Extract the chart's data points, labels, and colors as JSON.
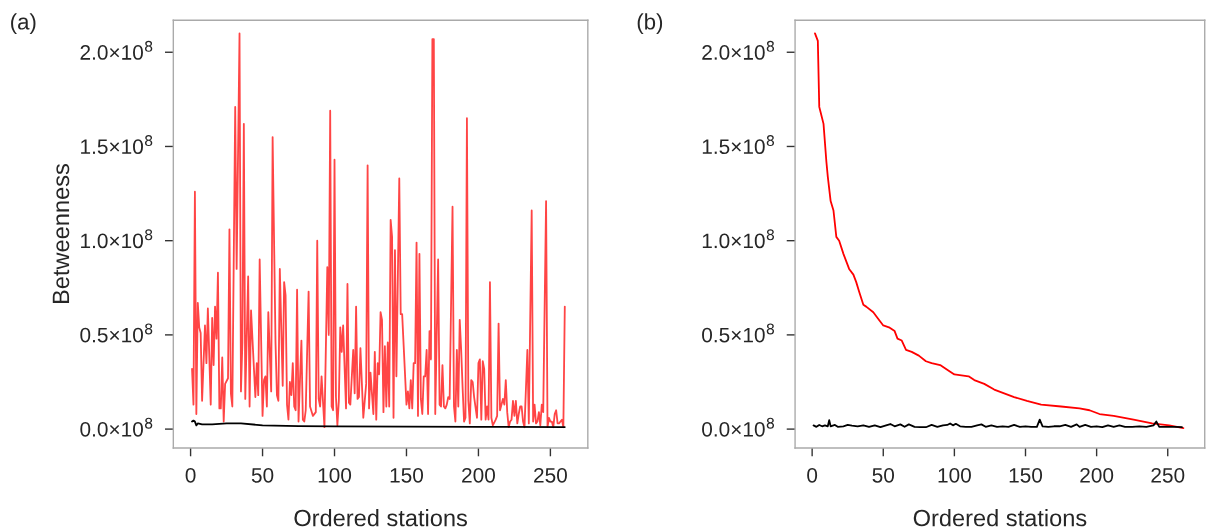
{
  "chart_data": [
    {
      "type": "line",
      "ylabel": "Betweenness",
      "xlabel": "Ordered stations",
      "annotations": [
        "(a)"
      ],
      "xlim": [
        -12,
        276
      ],
      "xticks": [
        0,
        50,
        100,
        150,
        200,
        250
      ],
      "ylim": [
        -10000000.0,
        217000000.0
      ],
      "yticks": [
        {
          "value": 0,
          "label": "0.0×10$^{8}$"
        },
        {
          "value": 50000000.0,
          "label": "0.5×10$^{8}$"
        },
        {
          "value": 100000000.0,
          "label": "1.0×10$^{8}$"
        },
        {
          "value": 150000000.0,
          "label": "1.5×10$^{8}$"
        },
        {
          "value": 200000000.0,
          "label": "2.0×10$^{8}$"
        }
      ],
      "grid": false,
      "marker": "none",
      "line_style": "solid",
      "series": [
        {
          "color": "#ff4545",
          "x": [
            1,
            2,
            3,
            4,
            5,
            6,
            7,
            8,
            10,
            11,
            12,
            14,
            15,
            16,
            17,
            18,
            19,
            20,
            21,
            22,
            23,
            24,
            26,
            27,
            28,
            29,
            31,
            32,
            34,
            35,
            36,
            37,
            38,
            40,
            41,
            42,
            45,
            46,
            47,
            48,
            50,
            51,
            52,
            53,
            54,
            56,
            57,
            59,
            60,
            61,
            62,
            64,
            65,
            66,
            67,
            68,
            69,
            70,
            71,
            72,
            73,
            74,
            75,
            76,
            77,
            78,
            79,
            80,
            82,
            83,
            85,
            87,
            88,
            89,
            90,
            91,
            93,
            95,
            96,
            97,
            98,
            99,
            100,
            101,
            102,
            103,
            104,
            105,
            106,
            108,
            109,
            110,
            111,
            113,
            114,
            115,
            116,
            117,
            118,
            120,
            121,
            122,
            123,
            124,
            125,
            127,
            128,
            129,
            130,
            131,
            132,
            133,
            134,
            135,
            136,
            137,
            138,
            139,
            140,
            141,
            142,
            143,
            145,
            146,
            147,
            150,
            151,
            152,
            153,
            154,
            155,
            156,
            157,
            158,
            159,
            160,
            161,
            162,
            163,
            164,
            165,
            166,
            167,
            168,
            169,
            170,
            172,
            173,
            174,
            175,
            176,
            177,
            178,
            179,
            180,
            182,
            183,
            184,
            185,
            186,
            187,
            188,
            189,
            190,
            191,
            192,
            193,
            194,
            195,
            196,
            197,
            199,
            200,
            201,
            202,
            203,
            204,
            205,
            206,
            207,
            208,
            209,
            210,
            212,
            213,
            214,
            215,
            217,
            218,
            219,
            220,
            221,
            222,
            223,
            224,
            225,
            226,
            227,
            228,
            229,
            230,
            231,
            232,
            234,
            235,
            237,
            238,
            239,
            240,
            241,
            242,
            243,
            244,
            245,
            247,
            248,
            249,
            250,
            251,
            252,
            253,
            254,
            255,
            256,
            257,
            258,
            259,
            260
          ],
          "values": [
            32000000.0,
            13000000.0,
            126000000.0,
            8000000.0,
            67000000.0,
            54000000.0,
            51000000.0,
            15000000.0,
            55000000.0,
            35000000.0,
            64000000.0,
            13000000.0,
            59000000.0,
            34000000.0,
            65000000.0,
            48000000.0,
            83000000.0,
            11000000.0,
            11000000.0,
            38000000.0,
            4000000.0,
            24000000.0,
            27000000.0,
            106000000.0,
            19000000.0,
            12000000.0,
            171000000.0,
            85000000.0,
            210000000.0,
            20000000.0,
            46000000.0,
            162000000.0,
            16000000.0,
            81000000.0,
            12000000.0,
            63000000.0,
            17000000.0,
            35000000.0,
            18000000.0,
            90000000.0,
            7000000.0,
            26000000.0,
            28000000.0,
            12000000.0,
            62000000.0,
            20000000.0,
            155000000.0,
            46000000.0,
            18000000.0,
            15000000.0,
            85000000.0,
            23000000.0,
            78000000.0,
            71000000.0,
            13000000.0,
            5000000.0,
            25000000.0,
            18000000.0,
            35000000.0,
            12000000.0,
            10000000.0,
            74000000.0,
            4000000.0,
            26000000.0,
            47000000.0,
            5000000.0,
            4000000.0,
            10000000.0,
            73000000.0,
            12000000.0,
            7000000.0,
            9000000.0,
            100000000.0,
            16000000.0,
            12000000.0,
            28000000.0,
            1000000.0,
            86000000.0,
            50000000.0,
            169000000.0,
            12000000.0,
            10000000.0,
            143000000.0,
            17000000.0,
            2000000.0,
            15000000.0,
            54000000.0,
            41000000.0,
            55000000.0,
            11000000.0,
            77000000.0,
            14000000.0,
            13000000.0,
            42000000.0,
            19000000.0,
            65000000.0,
            16000000.0,
            17000000.0,
            43000000.0,
            6000000.0,
            15000000.0,
            24000000.0,
            140000000.0,
            11000000.0,
            30000000.0,
            8000000.0,
            41000000.0,
            5000000.0,
            35000000.0,
            29000000.0,
            62000000.0,
            58000000.0,
            9000000.0,
            44000000.0,
            12000000.0,
            46000000.0,
            12000000.0,
            111000000.0,
            102000000.0,
            6000000.0,
            95000000.0,
            28000000.0,
            133000000.0,
            61000000.0,
            61000000.0,
            13000000.0,
            20000000.0,
            11000000.0,
            26000000.0,
            11000000.0,
            35000000.0,
            35000000.0,
            99000000.0,
            7000000.0,
            93000000.0,
            16000000.0,
            8000000.0,
            28000000.0,
            28000000.0,
            42000000.0,
            8000000.0,
            52000000.0,
            37000000.0,
            207000000.0,
            207000000.0,
            8000000.0,
            90000000.0,
            13000000.0,
            12000000.0,
            34000000.0,
            12000000.0,
            11000000.0,
            13000000.0,
            17000000.0,
            16000000.0,
            118000000.0,
            12000000.0,
            4000000.0,
            42000000.0,
            12000000.0,
            58000000.0,
            42000000.0,
            22000000.0,
            4000000.0,
            6000000.0,
            165000000.0,
            15000000.0,
            3000000.0,
            26000000.0,
            25000000.0,
            17000000.0,
            6000000.0,
            35000000.0,
            37000000.0,
            5000000.0,
            36000000.0,
            32000000.0,
            5000000.0,
            12000000.0,
            5000000.0,
            78000000.0,
            6000000.0,
            2000000.0,
            5000000.0,
            7000000.0,
            56000000.0,
            10000000.0,
            16000000.0,
            13000000.0,
            26000000.0,
            9000000.0,
            1000000.0,
            4000000.0,
            5000000.0,
            15000000.0,
            7000000.0,
            15000000.0,
            3000000.0,
            8000000.0,
            12000000.0,
            12000000.0,
            4000000.0,
            1000000.0,
            42000000.0,
            3000000.0,
            116000000.0,
            4000000.0,
            13000000.0,
            3000000.0,
            4000000.0,
            9000000.0,
            2000000.0,
            13000000.0,
            9000000.0,
            121000000.0,
            1000000.0,
            6000000.0,
            4000000.0,
            4000000.0,
            1000000.0,
            8000000.0,
            10000000.0,
            3000000.0,
            3000000.0,
            4000000.0,
            5000000.0,
            1000000.0,
            65000000.0
          ]
        },
        {
          "color": "#000000",
          "x": [
            1,
            2,
            3,
            4,
            5,
            8,
            15,
            25,
            35,
            50,
            75,
            100,
            150,
            200,
            260
          ],
          "values": [
            4000000.0,
            4500000.0,
            4000000.0,
            2000000.0,
            3000000.0,
            2500000.0,
            2500000.0,
            3000000.0,
            3000000.0,
            2000000.0,
            1600000.0,
            1400000.0,
            1300000.0,
            1200000.0,
            1100000.0
          ]
        }
      ]
    },
    {
      "type": "line",
      "xlabel": "Ordered stations",
      "annotations": [
        "(b)"
      ],
      "xlim": [
        -12,
        276
      ],
      "xticks": [
        0,
        50,
        100,
        150,
        200,
        250
      ],
      "ylim": [
        -10000000.0,
        217000000.0
      ],
      "yticks": [
        {
          "value": 0,
          "label": "0.0×10$^{8}$"
        },
        {
          "value": 50000000.0,
          "label": "0.5×10$^{8}$"
        },
        {
          "value": 100000000.0,
          "label": "1.0×10$^{8}$"
        },
        {
          "value": 150000000.0,
          "label": "1.5×10$^{8}$"
        },
        {
          "value": 200000000.0,
          "label": "2.0×10$^{8}$"
        }
      ],
      "grid": false,
      "marker": "none",
      "line_style": "solid",
      "series": [
        {
          "color": "#ff0000",
          "x": [
            2,
            4,
            5,
            6,
            8,
            10,
            11,
            13,
            15,
            17,
            19,
            22,
            24,
            26,
            29,
            31,
            33,
            36,
            38,
            43,
            46,
            50,
            54,
            58,
            60,
            63,
            66,
            70,
            75,
            80,
            84,
            90,
            96,
            100,
            110,
            114,
            121,
            128,
            135,
            142,
            151,
            161,
            175,
            188,
            195,
            202,
            212,
            226,
            239,
            251,
            261
          ],
          "values": [
            210000000.0,
            206000000.0,
            171000000.0,
            168000000.0,
            162000000.0,
            142000000.0,
            134000000.0,
            121000000.0,
            116000000.0,
            102000000.0,
            100000000.0,
            93000000.0,
            89000000.0,
            85000000.0,
            82000000.0,
            78000000.0,
            73000000.0,
            66000000.0,
            65000000.0,
            62000000.0,
            59000000.0,
            55000000.0,
            54000000.0,
            52000000.0,
            48000000.0,
            47000000.0,
            42000000.0,
            41000000.0,
            39000000.0,
            36000000.0,
            35000000.0,
            34000000.0,
            31000000.0,
            29000000.0,
            28000000.0,
            26000000.0,
            24000000.0,
            21000000.0,
            19000000.0,
            17000000.0,
            15000000.0,
            13000000.0,
            12000000.0,
            11000000.0,
            10000000.0,
            8000000.0,
            7000000.0,
            5000000.0,
            3000000.0,
            2000000.0,
            500000.0
          ]
        },
        {
          "color": "#000000",
          "x": [
            1,
            3,
            5,
            7,
            9,
            11,
            12,
            13,
            16,
            18,
            22,
            25,
            28,
            32,
            36,
            40,
            44,
            48,
            52,
            55,
            58,
            62,
            65,
            68,
            72,
            76,
            80,
            84,
            88,
            92,
            95,
            97,
            99,
            101,
            104,
            108,
            112,
            116,
            119,
            122,
            126,
            130,
            134,
            138,
            142,
            146,
            150,
            154,
            158,
            160,
            162,
            166,
            170,
            174,
            178,
            182,
            186,
            188,
            192,
            196,
            200,
            204,
            208,
            212,
            216,
            220,
            225,
            230,
            235,
            240,
            242,
            244,
            250,
            255,
            260
          ],
          "values": [
            2000000.0,
            1200000.0,
            2200000.0,
            1500000.0,
            2000000.0,
            1500000.0,
            4700000.0,
            1500000.0,
            2200000.0,
            1200000.0,
            1500000.0,
            2200000.0,
            1800000.0,
            1500000.0,
            2000000.0,
            1200000.0,
            2000000.0,
            1000000.0,
            2000000.0,
            2700000.0,
            1500000.0,
            2500000.0,
            1200000.0,
            2500000.0,
            1200000.0,
            1000000.0,
            1000000.0,
            2200000.0,
            1200000.0,
            2000000.0,
            2200000.0,
            3000000.0,
            2000000.0,
            2800000.0,
            1500000.0,
            1200000.0,
            1200000.0,
            2000000.0,
            2500000.0,
            1200000.0,
            2000000.0,
            1200000.0,
            1500000.0,
            1200000.0,
            2200000.0,
            1200000.0,
            1500000.0,
            1200000.0,
            1200000.0,
            5000000.0,
            1500000.0,
            1200000.0,
            1500000.0,
            1500000.0,
            2200000.0,
            1200000.0,
            2500000.0,
            1200000.0,
            2200000.0,
            1200000.0,
            1500000.0,
            1000000.0,
            2000000.0,
            1200000.0,
            2000000.0,
            1200000.0,
            1200000.0,
            1500000.0,
            1200000.0,
            2000000.0,
            4000000.0,
            1200000.0,
            1200000.0,
            1200000.0,
            1000000.0
          ]
        }
      ]
    }
  ]
}
